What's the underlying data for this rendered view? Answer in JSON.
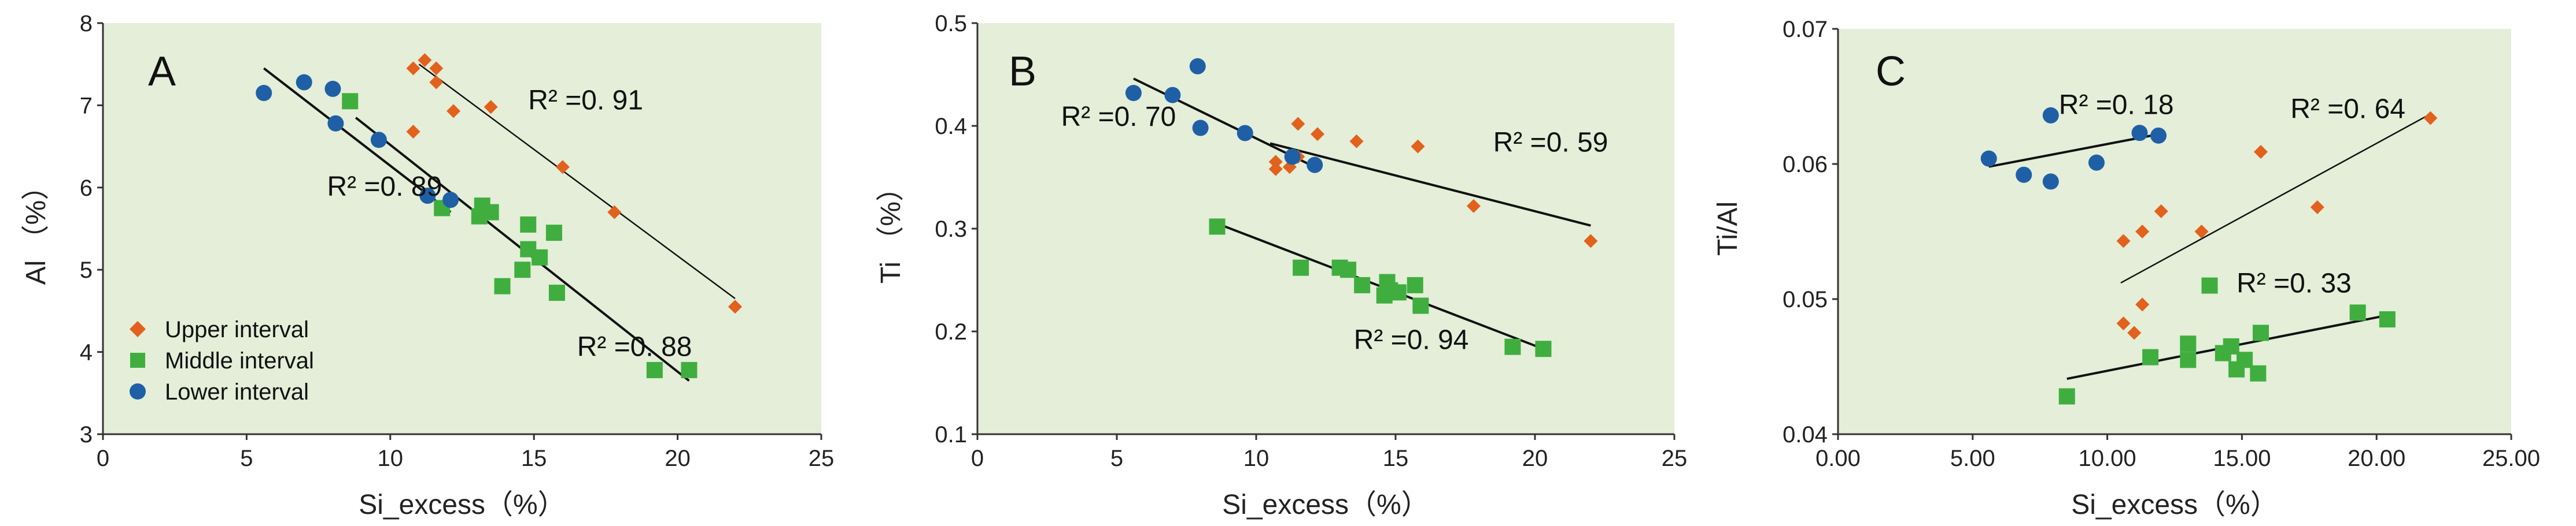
{
  "colors": {
    "upper": "#e2611c",
    "middle": "#3fae3f",
    "lower": "#1f5fa6",
    "plot_bg": "#e4eed8",
    "axis": "#333333"
  },
  "legend": {
    "upper": "Upper interval",
    "middle": "Middle interval",
    "lower": "Lower interval"
  },
  "chart_data": [
    {
      "type": "scatter",
      "panel": "A",
      "xlabel": "Si_excess（%）",
      "ylabel": "Al （%）",
      "xlim": [
        0,
        25
      ],
      "ylim": [
        3,
        8
      ],
      "xticks": [
        0,
        5,
        10,
        15,
        20,
        25
      ],
      "yticks": [
        3,
        4,
        5,
        6,
        7,
        8
      ],
      "xtick_labels": [
        "0",
        "5",
        "10",
        "15",
        "20",
        "25"
      ],
      "ytick_labels": [
        "3",
        "4",
        "5",
        "6",
        "7",
        "8"
      ],
      "series": [
        {
          "name": "Upper interval",
          "marker": "diamond",
          "points": [
            [
              11.2,
              7.55
            ],
            [
              11.6,
              7.45
            ],
            [
              10.8,
              7.45
            ],
            [
              11.6,
              7.28
            ],
            [
              12.2,
              6.93
            ],
            [
              13.5,
              6.98
            ],
            [
              10.8,
              6.68
            ],
            [
              16.0,
              6.25
            ],
            [
              17.8,
              5.7
            ],
            [
              22.0,
              4.55
            ]
          ],
          "fit": [
            [
              11.0,
              7.5
            ],
            [
              22.0,
              4.65
            ]
          ]
        },
        {
          "name": "Middle interval",
          "marker": "square",
          "points": [
            [
              8.6,
              7.05
            ],
            [
              13.2,
              5.78
            ],
            [
              13.1,
              5.65
            ],
            [
              13.5,
              5.7
            ],
            [
              11.8,
              5.75
            ],
            [
              14.8,
              5.55
            ],
            [
              15.7,
              5.45
            ],
            [
              14.8,
              5.25
            ],
            [
              15.2,
              5.15
            ],
            [
              14.6,
              5.0
            ],
            [
              13.9,
              4.8
            ],
            [
              15.8,
              4.72
            ],
            [
              19.2,
              3.78
            ],
            [
              20.4,
              3.78
            ]
          ],
          "fit": [
            [
              8.8,
              6.85
            ],
            [
              20.4,
              3.65
            ]
          ]
        },
        {
          "name": "Lower interval",
          "marker": "circle",
          "points": [
            [
              5.6,
              7.15
            ],
            [
              7.0,
              7.28
            ],
            [
              8.0,
              7.2
            ],
            [
              8.1,
              6.78
            ],
            [
              9.6,
              6.58
            ],
            [
              11.3,
              5.9
            ],
            [
              12.1,
              5.85
            ]
          ],
          "fit": [
            [
              5.6,
              7.45
            ],
            [
              12.1,
              5.7
            ]
          ]
        }
      ],
      "annotations": [
        {
          "text": "R² =0. 91",
          "x": 14.8,
          "y": 6.95
        },
        {
          "text": "R² =0. 89",
          "x": 7.8,
          "y": 5.9
        },
        {
          "text": "R² =0. 88",
          "x": 16.5,
          "y": 3.95
        }
      ]
    },
    {
      "type": "scatter",
      "panel": "B",
      "xlabel": "Si_excess（%）",
      "ylabel": "Ti （%）",
      "xlim": [
        0,
        25
      ],
      "ylim": [
        0.1,
        0.5
      ],
      "xticks": [
        0,
        5,
        10,
        15,
        20,
        25
      ],
      "yticks": [
        0.1,
        0.2,
        0.3,
        0.4,
        0.5
      ],
      "xtick_labels": [
        "0",
        "5",
        "10",
        "15",
        "20",
        "25"
      ],
      "ytick_labels": [
        "0.1",
        "0.2",
        "0.3",
        "0.4",
        "0.5"
      ],
      "series": [
        {
          "name": "Upper interval",
          "marker": "diamond",
          "points": [
            [
              11.5,
              0.402
            ],
            [
              12.2,
              0.392
            ],
            [
              13.6,
              0.385
            ],
            [
              15.8,
              0.38
            ],
            [
              11.5,
              0.37
            ],
            [
              10.7,
              0.365
            ],
            [
              10.7,
              0.358
            ],
            [
              11.2,
              0.36
            ],
            [
              17.8,
              0.322
            ],
            [
              22.0,
              0.288
            ]
          ],
          "fit": [
            [
              10.5,
              0.383
            ],
            [
              22.0,
              0.303
            ]
          ]
        },
        {
          "name": "Middle interval",
          "marker": "square",
          "points": [
            [
              8.6,
              0.302
            ],
            [
              11.6,
              0.262
            ],
            [
              13.0,
              0.262
            ],
            [
              13.3,
              0.26
            ],
            [
              13.8,
              0.245
            ],
            [
              14.7,
              0.248
            ],
            [
              14.8,
              0.24
            ],
            [
              15.1,
              0.238
            ],
            [
              14.6,
              0.235
            ],
            [
              15.7,
              0.245
            ],
            [
              15.9,
              0.225
            ],
            [
              19.2,
              0.185
            ],
            [
              20.3,
              0.183
            ]
          ],
          "fit": [
            [
              8.6,
              0.305
            ],
            [
              20.3,
              0.183
            ]
          ]
        },
        {
          "name": "Lower interval",
          "marker": "circle",
          "points": [
            [
              5.6,
              0.432
            ],
            [
              7.0,
              0.43
            ],
            [
              7.9,
              0.458
            ],
            [
              8.0,
              0.398
            ],
            [
              9.6,
              0.393
            ],
            [
              11.3,
              0.37
            ],
            [
              12.1,
              0.362
            ]
          ],
          "fit": [
            [
              5.6,
              0.446
            ],
            [
              12.1,
              0.36
            ]
          ]
        }
      ],
      "annotations": [
        {
          "text": "R² =0. 70",
          "x": 3.0,
          "y": 0.4
        },
        {
          "text": "R² =0. 59",
          "x": 18.5,
          "y": 0.375
        },
        {
          "text": "R² =0. 94",
          "x": 13.5,
          "y": 0.183
        }
      ]
    },
    {
      "type": "scatter",
      "panel": "C",
      "xlabel": "Si_excess（%）",
      "ylabel": "Ti/Al",
      "xlim": [
        0,
        25
      ],
      "ylim": [
        0.04,
        0.07
      ],
      "xticks": [
        0,
        5,
        10,
        15,
        20,
        25
      ],
      "yticks": [
        0.04,
        0.05,
        0.06,
        0.07
      ],
      "xtick_labels": [
        "0.00",
        "5.00",
        "10.00",
        "15.00",
        "20.00",
        "25.00"
      ],
      "ytick_labels": [
        "0.04",
        "0.05",
        "0.06",
        "0.07"
      ],
      "series": [
        {
          "name": "Upper interval",
          "marker": "diamond",
          "points": [
            [
              22.0,
              0.0634
            ],
            [
              15.7,
              0.0609
            ],
            [
              17.8,
              0.0568
            ],
            [
              12.0,
              0.0565
            ],
            [
              13.5,
              0.055
            ],
            [
              11.3,
              0.055
            ],
            [
              10.6,
              0.0543
            ],
            [
              11.3,
              0.0496
            ],
            [
              10.6,
              0.0482
            ],
            [
              11.0,
              0.0475
            ]
          ],
          "fit": [
            [
              10.5,
              0.0512
            ],
            [
              22.0,
              0.0637
            ]
          ]
        },
        {
          "name": "Middle interval",
          "marker": "square",
          "points": [
            [
              13.8,
              0.051
            ],
            [
              19.3,
              0.049
            ],
            [
              20.4,
              0.0485
            ],
            [
              15.7,
              0.0475
            ],
            [
              13.0,
              0.0467
            ],
            [
              14.6,
              0.0465
            ],
            [
              14.3,
              0.046
            ],
            [
              15.1,
              0.0455
            ],
            [
              11.6,
              0.0457
            ],
            [
              13.0,
              0.0455
            ],
            [
              14.8,
              0.0448
            ],
            [
              15.6,
              0.0445
            ],
            [
              8.5,
              0.0428
            ]
          ],
          "fit": [
            [
              8.5,
              0.0441
            ],
            [
              20.4,
              0.0488
            ]
          ]
        },
        {
          "name": "Lower interval",
          "marker": "circle",
          "points": [
            [
              5.6,
              0.0604
            ],
            [
              6.9,
              0.0592
            ],
            [
              7.9,
              0.0587
            ],
            [
              9.6,
              0.0601
            ],
            [
              7.9,
              0.0636
            ],
            [
              11.2,
              0.0623
            ],
            [
              11.9,
              0.0621
            ]
          ],
          "fit": [
            [
              5.6,
              0.0598
            ],
            [
              11.9,
              0.0622
            ]
          ]
        }
      ],
      "annotations": [
        {
          "text": "R² =0. 18",
          "x": 8.2,
          "y": 0.0637
        },
        {
          "text": "R² =0. 64",
          "x": 16.8,
          "y": 0.0634
        },
        {
          "text": "R² =0. 33",
          "x": 14.8,
          "y": 0.0505
        }
      ]
    }
  ]
}
